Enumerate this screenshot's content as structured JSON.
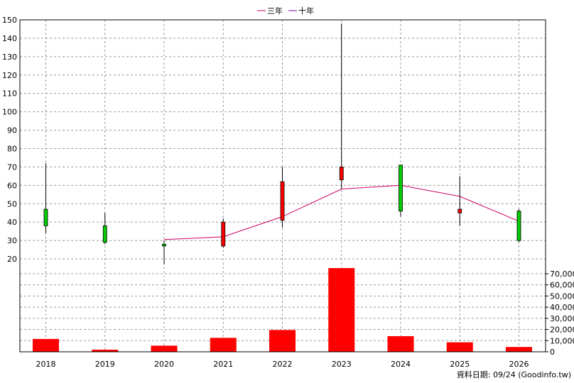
{
  "chart_data": {
    "type": "candlestick",
    "legend": {
      "placement": "top-center",
      "entries": [
        {
          "name": "三年",
          "color": "#cc0066"
        },
        {
          "name": "十年",
          "color": "#660099"
        }
      ]
    },
    "categories": [
      "2018",
      "2019",
      "2020",
      "2021",
      "2022",
      "2023",
      "2024",
      "2025",
      "2026"
    ],
    "price_axis": {
      "ylim": [
        15,
        150
      ],
      "ticks": [
        20,
        30,
        40,
        50,
        60,
        70,
        80,
        90,
        100,
        110,
        120,
        130,
        140,
        150
      ],
      "position": "left"
    },
    "volume_axis": {
      "ylim": [
        0,
        75000
      ],
      "ticks": [
        "0",
        "10,000",
        "20,000",
        "30,000",
        "40,000",
        "50,000",
        "60,000",
        "70,000"
      ],
      "position": "right"
    },
    "candles": [
      {
        "year": "2018",
        "open": 47,
        "close": 38,
        "high": 72,
        "low": 34,
        "color": "#00cc00"
      },
      {
        "year": "2019",
        "open": 38,
        "close": 29,
        "high": 45,
        "low": 28,
        "color": "#00cc00"
      },
      {
        "year": "2020",
        "open": 28,
        "close": 27,
        "high": 30,
        "low": 17,
        "color": "#00cc00"
      },
      {
        "year": "2021",
        "open": 27,
        "close": 40,
        "high": 42,
        "low": 26,
        "color": "#ff0000"
      },
      {
        "year": "2022",
        "open": 41,
        "close": 62,
        "high": 70,
        "low": 37,
        "color": "#ff0000"
      },
      {
        "year": "2023",
        "open": 63,
        "close": 70,
        "high": 148,
        "low": 58,
        "color": "#ff0000"
      },
      {
        "year": "2024",
        "open": 71,
        "close": 46,
        "high": 71,
        "low": 43,
        "color": "#00cc00"
      },
      {
        "year": "2025",
        "open": 45,
        "close": 47,
        "high": 65,
        "low": 38,
        "color": "#ff0000"
      },
      {
        "year": "2026",
        "open": 46,
        "close": 30,
        "high": 47,
        "low": 29,
        "color": "#00cc00"
      }
    ],
    "series": [
      {
        "name": "三年",
        "color": "#cc0066",
        "values": [
          null,
          null,
          30.5,
          32,
          43,
          58,
          60,
          54,
          40.5
        ]
      },
      {
        "name": "十年",
        "color": "#660099",
        "values": [
          null,
          null,
          null,
          null,
          null,
          null,
          null,
          null,
          null
        ]
      }
    ],
    "volumes": [
      11500,
      1900,
      5500,
      12500,
      19500,
      75000,
      14000,
      8500,
      4300
    ],
    "volume_color": "#ff0000",
    "grid": true,
    "footnote": "資料日期: 09/24 (Goodinfo.tw)"
  }
}
